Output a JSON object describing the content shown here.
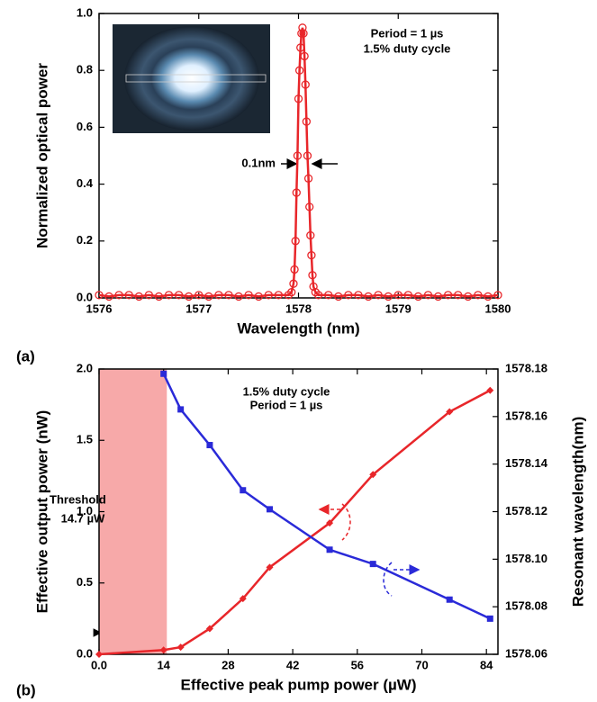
{
  "chart_data": [
    {
      "type": "line",
      "panel_label": "(a)",
      "xlabel": "Wavelength (nm)",
      "ylabel": "Normalized optical power",
      "xlim": [
        1576,
        1580
      ],
      "ylim": [
        0,
        1.0
      ],
      "xticks": [
        1576,
        1577,
        1578,
        1579,
        1580
      ],
      "yticks": [
        {
          "value": 0,
          "label": "0.0"
        },
        0.2,
        0.4,
        0.6,
        0.8,
        {
          "value": 1,
          "label": "1.0"
        }
      ],
      "series": [
        {
          "color": "#e8262a",
          "marker": "circle",
          "x": [
            1576.0,
            1576.1,
            1576.2,
            1576.3,
            1576.4,
            1576.5,
            1576.6,
            1576.7,
            1576.8,
            1576.9,
            1577.0,
            1577.1,
            1577.2,
            1577.3,
            1577.4,
            1577.5,
            1577.6,
            1577.7,
            1577.8,
            1577.9,
            1577.93,
            1577.95,
            1577.96,
            1577.97,
            1577.98,
            1577.99,
            1578.0,
            1578.01,
            1578.02,
            1578.03,
            1578.04,
            1578.05,
            1578.06,
            1578.07,
            1578.08,
            1578.09,
            1578.1,
            1578.11,
            1578.12,
            1578.13,
            1578.14,
            1578.15,
            1578.17,
            1578.2,
            1578.3,
            1578.4,
            1578.5,
            1578.6,
            1578.7,
            1578.8,
            1578.9,
            1579.0,
            1579.1,
            1579.2,
            1579.3,
            1579.4,
            1579.5,
            1579.6,
            1579.7,
            1579.8,
            1579.9,
            1580.0
          ],
          "values": [
            0.01,
            0.005,
            0.01,
            0.01,
            0.005,
            0.01,
            0.005,
            0.01,
            0.01,
            0.005,
            0.01,
            0.005,
            0.01,
            0.01,
            0.005,
            0.01,
            0.005,
            0.01,
            0.01,
            0.01,
            0.02,
            0.05,
            0.1,
            0.2,
            0.37,
            0.5,
            0.7,
            0.8,
            0.88,
            0.93,
            0.95,
            0.93,
            0.85,
            0.75,
            0.62,
            0.5,
            0.42,
            0.32,
            0.22,
            0.15,
            0.08,
            0.04,
            0.02,
            0.01,
            0.01,
            0.005,
            0.01,
            0.01,
            0.005,
            0.01,
            0.005,
            0.01,
            0.01,
            0.005,
            0.01,
            0.005,
            0.01,
            0.01,
            0.005,
            0.01,
            0.005,
            0.01
          ]
        }
      ],
      "annotations": [
        "Period = 1 µs",
        "1.5% duty cycle",
        "0.1nm"
      ]
    },
    {
      "type": "line",
      "panel_label": "(b)",
      "xlabel": "Effective peak pump power (µW)",
      "ylabel": "Effective output power (nW)",
      "y2label": "Resonant wavelength(nm)",
      "xlim": [
        0,
        86.5
      ],
      "ylim": [
        0,
        2.0
      ],
      "y2lim": [
        1578.06,
        1578.18
      ],
      "xticks": [
        {
          "value": 0,
          "label": "0.0"
        },
        14,
        28,
        42,
        56,
        70,
        84
      ],
      "yticks": [
        {
          "value": 0,
          "label": "0.0"
        },
        0.5,
        {
          "value": 1,
          "label": "1.0"
        },
        1.5,
        {
          "value": 2,
          "label": "2.0"
        }
      ],
      "y2ticks": [
        1578.06,
        1578.08,
        {
          "value": 1578.1,
          "label": "1578.10"
        },
        1578.12,
        1578.14,
        1578.16,
        1578.18
      ],
      "threshold_region": [
        0,
        14.7
      ],
      "series": [
        {
          "color": "#e8262a",
          "marker": "diamond",
          "x": [
            0,
            14,
            17.7,
            24,
            31.2,
            37,
            50,
            59.4,
            76,
            84.8
          ],
          "values": [
            0,
            0.03,
            0.05,
            0.18,
            0.39,
            0.61,
            0.92,
            1.26,
            1.7,
            1.85
          ]
        },
        {
          "color": "#2a2ad8",
          "marker": "square",
          "axis": "y2",
          "x": [
            14,
            17.7,
            24,
            31.2,
            37,
            50,
            59.4,
            76,
            84.8
          ],
          "values": [
            1578.178,
            1578.163,
            1578.148,
            1578.129,
            1578.121,
            1578.104,
            1578.098,
            1578.083,
            1578.075
          ]
        }
      ],
      "annotations": [
        "1.5% duty cycle",
        "Period = 1 µs",
        "Threshold",
        "14.7 µW"
      ]
    }
  ]
}
